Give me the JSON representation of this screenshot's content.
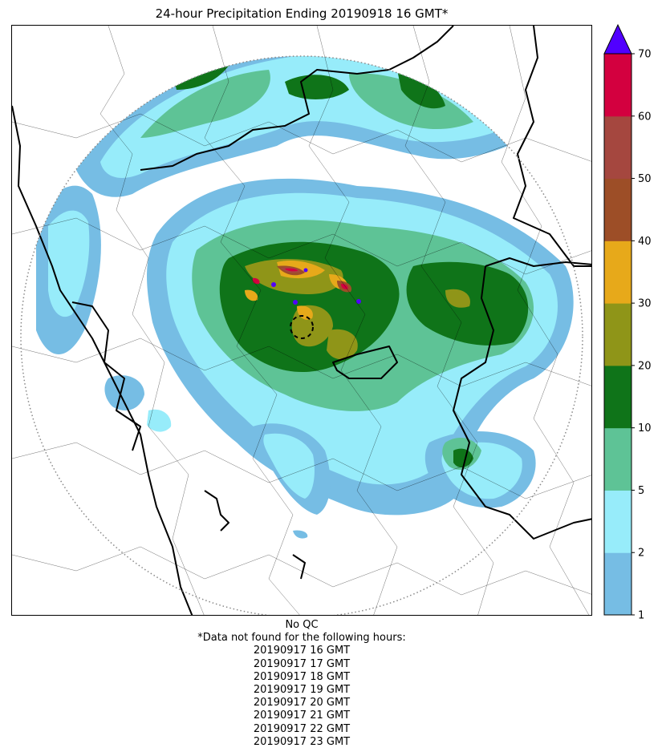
{
  "title": "24-hour Precipitation Ending 20190918 16 GMT*",
  "colorbar": {
    "ticks": [
      1,
      2,
      5,
      10,
      20,
      30,
      40,
      50,
      60,
      70
    ],
    "colors": [
      "#76bde4",
      "#97ecfa",
      "#5ec396",
      "#0f7419",
      "#8f9518",
      "#e7a91a",
      "#9d4e27",
      "#a5473f",
      "#d3003f"
    ],
    "extend_color": "#5100ff"
  },
  "radar_range_ring": {
    "stroke": "#888888",
    "style": "dotted"
  },
  "footer": {
    "qc": "No QC",
    "missing_header": "*Data not found for the following hours:",
    "missing_hours": [
      "20190917 16 GMT",
      "20190917 17 GMT",
      "20190917 18 GMT",
      "20190917 19 GMT",
      "20190917 20 GMT",
      "20190917 21 GMT",
      "20190917 22 GMT",
      "20190917 23 GMT"
    ]
  }
}
